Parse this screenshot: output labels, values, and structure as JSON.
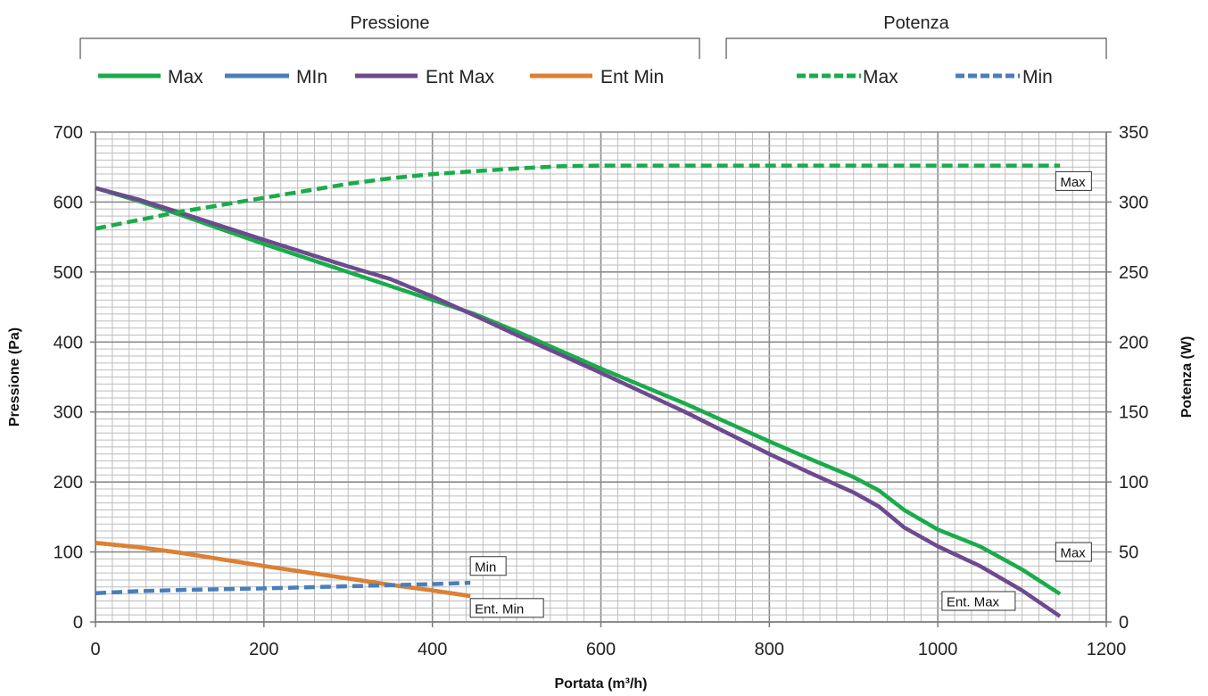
{
  "chart_data": {
    "type": "line",
    "xlabel": "Portata (m³/h)",
    "ylabel_left": "Pressione (Pa)",
    "ylabel_right": "Potenza (W)",
    "xlim": [
      0,
      1200
    ],
    "ylim_left": [
      0,
      700
    ],
    "ylim_right": [
      0,
      350
    ],
    "x_ticks": [
      "0",
      "200",
      "400",
      "600",
      "800",
      "1000",
      "1200"
    ],
    "y_left_ticks": [
      "0",
      "100",
      "200",
      "300",
      "400",
      "500",
      "600",
      "700"
    ],
    "y_right_ticks": [
      "0",
      "50",
      "100",
      "150",
      "200",
      "250",
      "300",
      "350"
    ],
    "grid": true,
    "legend_groups": [
      {
        "title": "Pressione",
        "entries": [
          "Max",
          "MIn",
          "Ent Max",
          "Ent Min"
        ]
      },
      {
        "title": "Potenza",
        "entries": [
          "Max",
          "Min"
        ]
      }
    ],
    "series": [
      {
        "name": "Max",
        "group": "Pressione",
        "axis": "left",
        "color": "#1aab4b",
        "dash": "solid",
        "x": [
          0,
          50,
          100,
          200,
          300,
          350,
          400,
          450,
          500,
          600,
          700,
          800,
          850,
          900,
          930,
          960,
          1000,
          1050,
          1100,
          1145
        ],
        "y": [
          620,
          602,
          582,
          540,
          500,
          480,
          460,
          440,
          415,
          362,
          312,
          258,
          232,
          207,
          188,
          160,
          132,
          108,
          75,
          40
        ]
      },
      {
        "name": "MIn",
        "group": "Pressione",
        "axis": "left",
        "color": "#4a7ebb",
        "dash": "solid",
        "x": [
          0,
          50,
          100,
          200,
          300,
          350,
          400,
          445
        ],
        "y": [
          113,
          107,
          99,
          80,
          62,
          53,
          45,
          37
        ]
      },
      {
        "name": "Ent Max",
        "group": "Pressione",
        "axis": "left",
        "color": "#6d4a8e",
        "dash": "solid",
        "x": [
          0,
          50,
          100,
          200,
          300,
          350,
          400,
          450,
          500,
          600,
          700,
          800,
          850,
          900,
          930,
          960,
          1000,
          1050,
          1100,
          1145
        ],
        "y": [
          620,
          604,
          585,
          546,
          508,
          490,
          465,
          438,
          410,
          356,
          300,
          240,
          212,
          185,
          165,
          135,
          108,
          80,
          45,
          8
        ]
      },
      {
        "name": "Ent Min",
        "group": "Pressione",
        "axis": "left",
        "color": "#e07f2f",
        "dash": "solid",
        "x": [
          0,
          50,
          100,
          200,
          300,
          350,
          400,
          445
        ],
        "y": [
          113,
          107,
          99,
          80,
          62,
          53,
          45,
          37
        ]
      },
      {
        "name": "Max",
        "group": "Potenza",
        "axis": "right",
        "color": "#1aab4b",
        "dash": "dashed",
        "x": [
          0,
          50,
          100,
          150,
          200,
          250,
          300,
          350,
          400,
          450,
          500,
          550,
          600,
          700,
          800,
          900,
          1000,
          1100,
          1145
        ],
        "y": [
          281,
          287,
          293,
          298,
          303,
          308,
          313,
          317,
          320,
          322,
          324,
          325.5,
          326,
          326,
          326,
          326,
          326,
          326,
          326
        ]
      },
      {
        "name": "Min",
        "group": "Potenza",
        "axis": "right",
        "color": "#4a7ebb",
        "dash": "dashed",
        "x": [
          0,
          50,
          100,
          200,
          300,
          400,
          445
        ],
        "y": [
          20.5,
          22,
          22.8,
          24,
          25.5,
          27,
          28
        ]
      }
    ],
    "annotations": [
      {
        "text": "Max",
        "x": 1140,
        "y_left": 630
      },
      {
        "text": "Min",
        "x": 445,
        "y_left": 80
      },
      {
        "text": "Ent. Min",
        "x": 445,
        "y_left": 20
      },
      {
        "text": "Max",
        "x": 1140,
        "y_left": 100
      },
      {
        "text": "Ent. Max",
        "x": 1005,
        "y_left": 30
      }
    ]
  }
}
